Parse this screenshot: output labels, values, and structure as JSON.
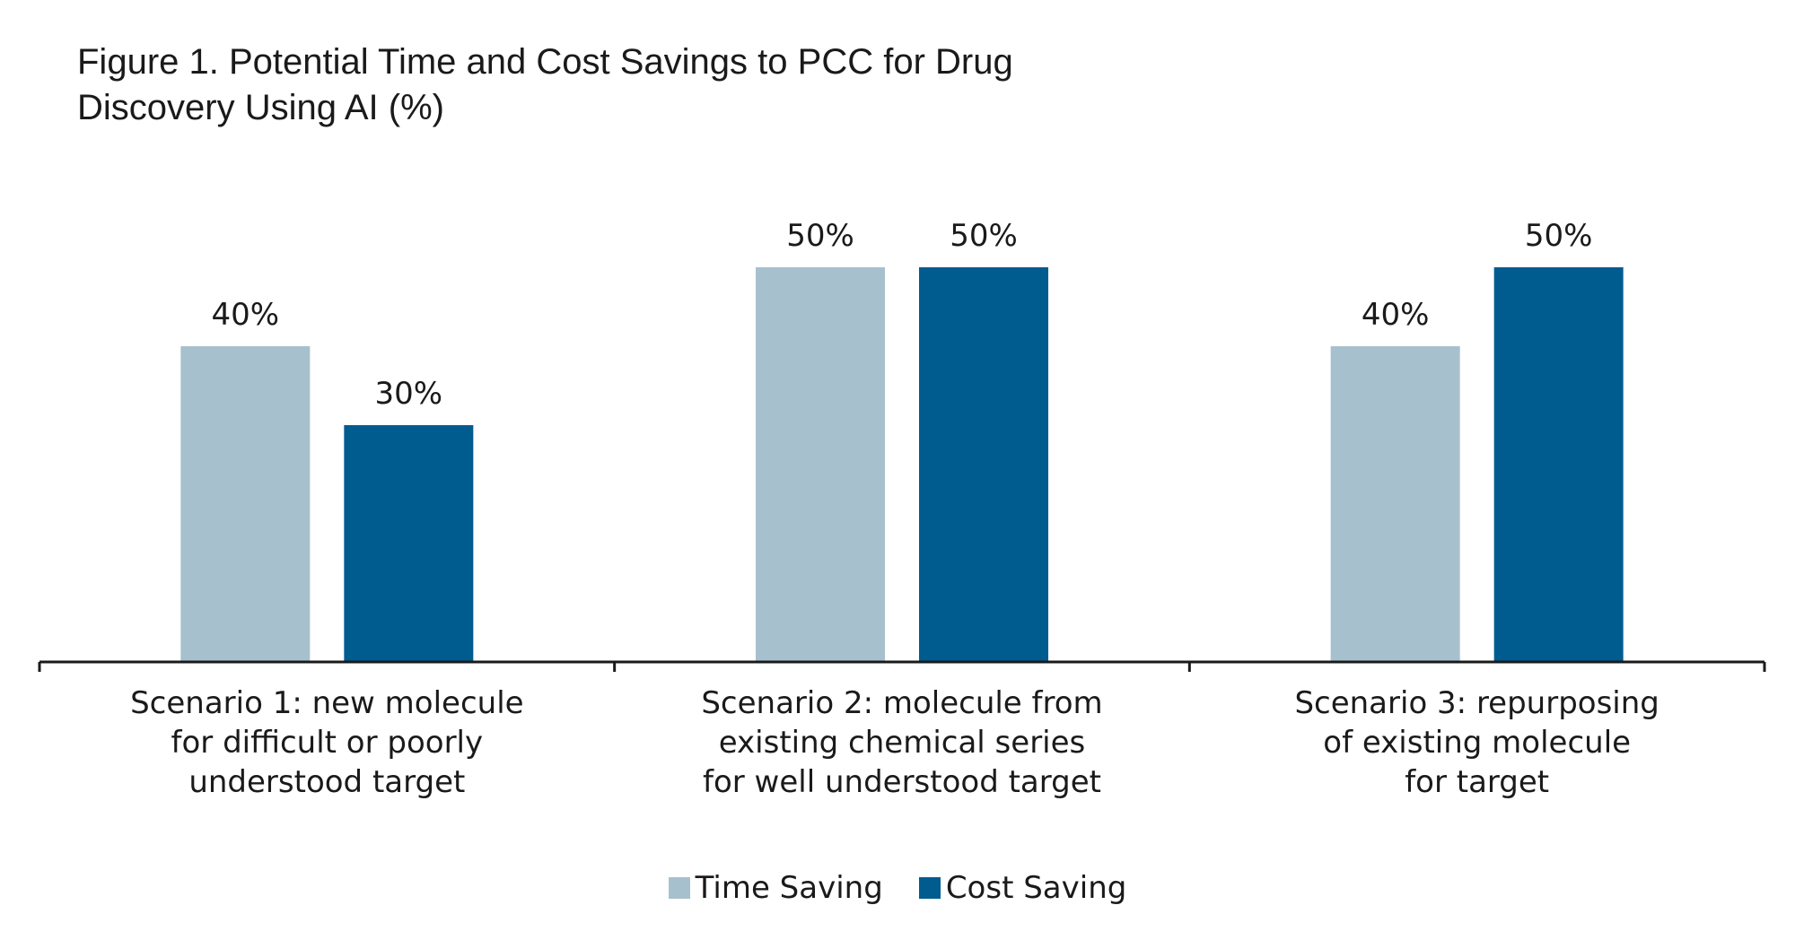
{
  "chart_data": {
    "type": "bar",
    "title_lines": [
      "Figure 1. Potential Time and Cost Savings to PCC for Drug",
      "Discovery Using AI (%)"
    ],
    "categories": [
      [
        "Scenario 1: new molecule",
        "for difficult or poorly",
        "understood target"
      ],
      [
        "Scenario 2: molecule from",
        "existing chemical series",
        "for well understood target"
      ],
      [
        "Scenario 3: repurposing",
        "of existing molecule",
        "for target"
      ]
    ],
    "series": [
      {
        "name": "Time Saving",
        "color": "#a7c0cd",
        "values": [
          40,
          50,
          40
        ],
        "labels": [
          "40%",
          "50%",
          "40%"
        ]
      },
      {
        "name": "Cost Saving",
        "color": "#005c8f",
        "values": [
          30,
          50,
          50
        ],
        "labels": [
          "30%",
          "50%",
          "50%"
        ]
      }
    ],
    "ylim": [
      0,
      60
    ],
    "xlabel": "",
    "ylabel": "",
    "grid": false,
    "legend_position": "bottom-center",
    "axis_color": "#1a1a1a"
  }
}
